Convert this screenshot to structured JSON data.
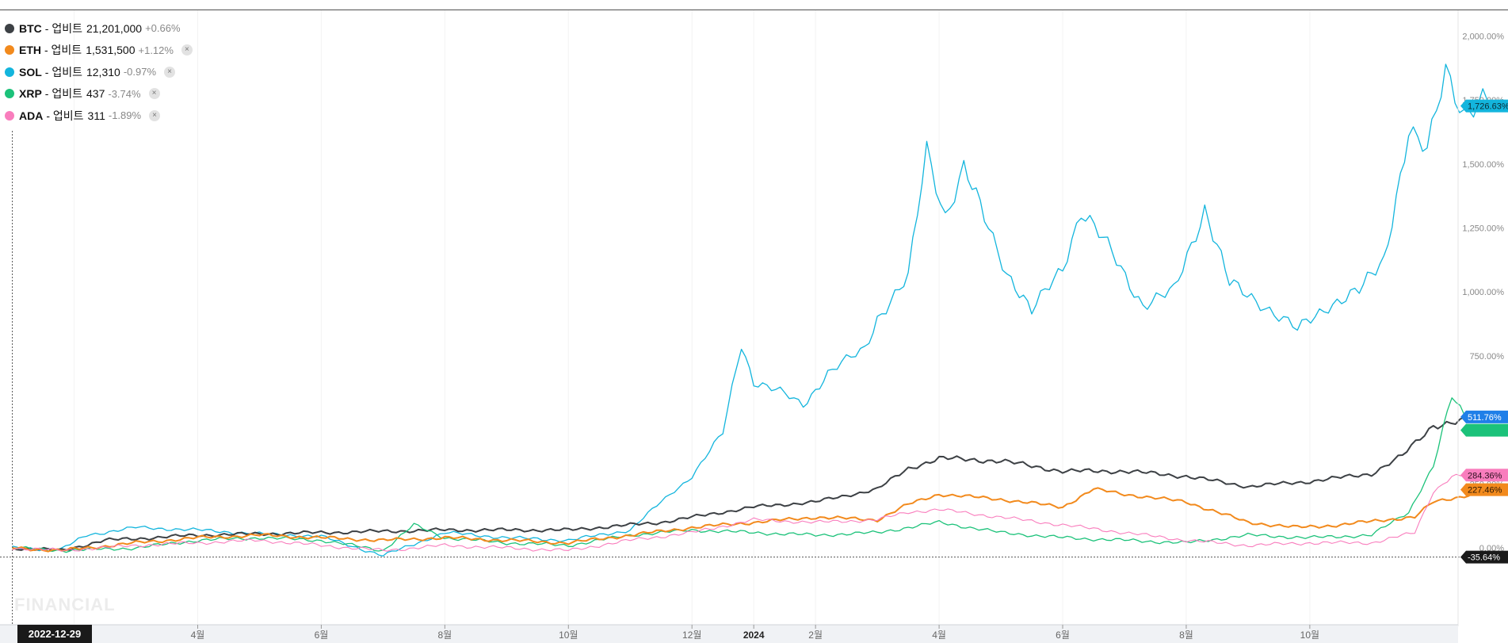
{
  "legend": [
    {
      "name": "BTC",
      "exchange": "- 업비트",
      "price": "21,201,000",
      "change": "+0.66%",
      "color": "#3d4145",
      "closable": false
    },
    {
      "name": "ETH",
      "exchange": "- 업비트",
      "price": "1,531,500",
      "change": "+1.12%",
      "color": "#f28a1d",
      "closable": true
    },
    {
      "name": "SOL",
      "exchange": "- 업비트",
      "price": "12,310",
      "change": "-0.97%",
      "color": "#13b5dd",
      "closable": true
    },
    {
      "name": "XRP",
      "exchange": "- 업비트",
      "price": "437",
      "change": "-3.74%",
      "color": "#1cc27a",
      "closable": true
    },
    {
      "name": "ADA",
      "exchange": "- 업비트",
      "price": "311",
      "change": "-1.89%",
      "color": "#f97dbd",
      "closable": true
    }
  ],
  "close_glyph": "×",
  "watermark": "FINANCIAL",
  "crosshair_date": "2022-12-29",
  "chart_data": {
    "type": "line",
    "y_unit": "%",
    "ylim": [
      -300,
      2100
    ],
    "y_ticks": [
      "2,000.00%",
      "1,750.00%",
      "1,500.00%",
      "1,250.00%",
      "1,000.00%",
      "750.00%",
      "500.00%",
      "250.00%",
      "0.00%"
    ],
    "y_tick_values": [
      2000,
      1750,
      1500,
      1250,
      1000,
      750,
      500,
      250,
      0
    ],
    "x_ticks": [
      "2월",
      "4월",
      "6월",
      "8월",
      "10월",
      "12월",
      "2024",
      "2월",
      "4월",
      "6월",
      "8월",
      "10월"
    ],
    "x_tick_months": [
      1,
      3,
      5,
      7,
      9,
      11,
      12,
      13,
      15,
      17,
      19,
      21
    ],
    "x_range_months": [
      -0.2,
      23.4
    ],
    "grid": true,
    "series": [
      {
        "name": "SOL",
        "color": "#13b5dd",
        "width": 1.3,
        "end_label": "1,726.63%",
        "points": [
          [
            0,
            0
          ],
          [
            0.8,
            -5
          ],
          [
            1.2,
            50
          ],
          [
            2,
            80
          ],
          [
            3,
            70
          ],
          [
            4,
            55
          ],
          [
            5,
            45
          ],
          [
            6,
            -30
          ],
          [
            7,
            60
          ],
          [
            8,
            40
          ],
          [
            9,
            30
          ],
          [
            10,
            70
          ],
          [
            10.5,
            180
          ],
          [
            11,
            280
          ],
          [
            11.5,
            450
          ],
          [
            11.8,
            800
          ],
          [
            12,
            650
          ],
          [
            12.5,
            600
          ],
          [
            12.8,
            560
          ],
          [
            13.2,
            680
          ],
          [
            13.8,
            780
          ],
          [
            14,
            900
          ],
          [
            14.5,
            1050
          ],
          [
            14.8,
            1560
          ],
          [
            15.1,
            1300
          ],
          [
            15.4,
            1480
          ],
          [
            15.8,
            1250
          ],
          [
            16.1,
            1080
          ],
          [
            16.5,
            920
          ],
          [
            17,
            1100
          ],
          [
            17.3,
            1320
          ],
          [
            17.8,
            1150
          ],
          [
            18.3,
            950
          ],
          [
            18.8,
            1000
          ],
          [
            19.3,
            1330
          ],
          [
            19.7,
            1030
          ],
          [
            20.2,
            960
          ],
          [
            20.8,
            850
          ],
          [
            21.3,
            950
          ],
          [
            21.8,
            1000
          ],
          [
            22.2,
            1130
          ],
          [
            22.6,
            1620
          ],
          [
            22.9,
            1540
          ],
          [
            23.2,
            1880
          ],
          [
            23.5,
            1700
          ],
          [
            23.8,
            1740
          ],
          [
            24,
            1727
          ]
        ]
      },
      {
        "name": "BTC",
        "color": "#3d4145",
        "width": 2.0,
        "end_label": "511.76%",
        "points": [
          [
            0,
            0
          ],
          [
            0.8,
            -10
          ],
          [
            1.5,
            30
          ],
          [
            3,
            50
          ],
          [
            5,
            60
          ],
          [
            7,
            70
          ],
          [
            9,
            70
          ],
          [
            10.5,
            100
          ],
          [
            12,
            160
          ],
          [
            13,
            180
          ],
          [
            14,
            230
          ],
          [
            14.5,
            310
          ],
          [
            15,
            350
          ],
          [
            16,
            340
          ],
          [
            17,
            300
          ],
          [
            18,
            300
          ],
          [
            19,
            280
          ],
          [
            20,
            240
          ],
          [
            21,
            260
          ],
          [
            22,
            290
          ],
          [
            22.5,
            360
          ],
          [
            23,
            480
          ],
          [
            24,
            512
          ]
        ]
      },
      {
        "name": "XRP",
        "color": "#1cc27a",
        "width": 1.3,
        "end_label": "",
        "points": [
          [
            0,
            0
          ],
          [
            0.8,
            -10
          ],
          [
            2,
            0
          ],
          [
            3,
            30
          ],
          [
            4,
            40
          ],
          [
            5,
            30
          ],
          [
            6,
            -10
          ],
          [
            6.5,
            90
          ],
          [
            7,
            40
          ],
          [
            8,
            20
          ],
          [
            9,
            10
          ],
          [
            10,
            50
          ],
          [
            11,
            70
          ],
          [
            12,
            60
          ],
          [
            13,
            50
          ],
          [
            14,
            60
          ],
          [
            15,
            100
          ],
          [
            16,
            60
          ],
          [
            17,
            40
          ],
          [
            18,
            30
          ],
          [
            19,
            20
          ],
          [
            20,
            50
          ],
          [
            21,
            40
          ],
          [
            22,
            50
          ],
          [
            22.6,
            140
          ],
          [
            23,
            320
          ],
          [
            23.3,
            590
          ],
          [
            23.5,
            520
          ]
        ]
      },
      {
        "name": "ETH",
        "color": "#f28a1d",
        "width": 2.0,
        "end_label": "227.46%",
        "points": [
          [
            0,
            0
          ],
          [
            0.8,
            -10
          ],
          [
            2,
            20
          ],
          [
            3,
            40
          ],
          [
            4,
            50
          ],
          [
            5,
            40
          ],
          [
            6,
            30
          ],
          [
            7,
            40
          ],
          [
            8,
            30
          ],
          [
            9,
            20
          ],
          [
            10,
            50
          ],
          [
            11,
            80
          ],
          [
            12,
            100
          ],
          [
            13,
            120
          ],
          [
            14,
            110
          ],
          [
            14.5,
            170
          ],
          [
            15,
            210
          ],
          [
            16,
            190
          ],
          [
            17,
            160
          ],
          [
            17.5,
            230
          ],
          [
            18,
            210
          ],
          [
            19,
            180
          ],
          [
            20,
            100
          ],
          [
            20.8,
            80
          ],
          [
            21.5,
            90
          ],
          [
            22.2,
            110
          ],
          [
            22.7,
            120
          ],
          [
            23,
            180
          ],
          [
            24,
            227
          ]
        ]
      },
      {
        "name": "ADA",
        "color": "#f97dbd",
        "width": 1.1,
        "end_label": "284.36%",
        "points": [
          [
            0,
            0
          ],
          [
            0.8,
            -10
          ],
          [
            2,
            10
          ],
          [
            3,
            20
          ],
          [
            4,
            30
          ],
          [
            5,
            10
          ],
          [
            6,
            -10
          ],
          [
            7,
            10
          ],
          [
            8,
            0
          ],
          [
            9,
            -10
          ],
          [
            10,
            30
          ],
          [
            11,
            60
          ],
          [
            12,
            110
          ],
          [
            13,
            100
          ],
          [
            14,
            110
          ],
          [
            14.5,
            140
          ],
          [
            15,
            150
          ],
          [
            16,
            120
          ],
          [
            17,
            90
          ],
          [
            18,
            60
          ],
          [
            19,
            30
          ],
          [
            20,
            10
          ],
          [
            21,
            20
          ],
          [
            22,
            20
          ],
          [
            22.7,
            60
          ],
          [
            23,
            220
          ],
          [
            23.3,
            280
          ],
          [
            24,
            284
          ]
        ]
      }
    ],
    "baseline": {
      "value": -35.64,
      "label": "-35.64%"
    }
  }
}
